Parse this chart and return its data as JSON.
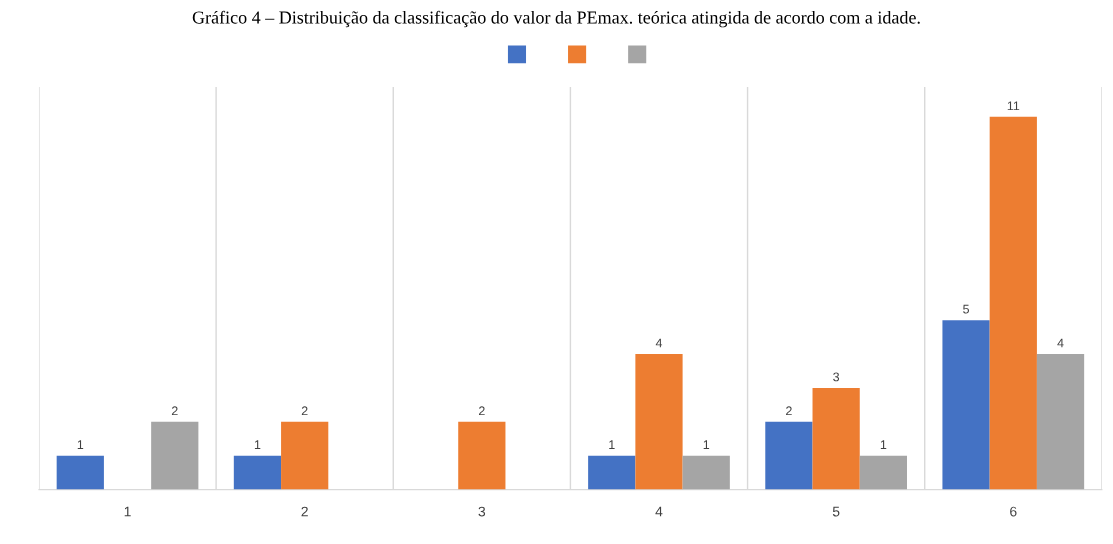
{
  "chart_data": {
    "type": "bar",
    "title": "Gráfico 4 – Distribuição da classificação do valor da PEmax. teórica atingida de acordo com a idade.",
    "categories": [
      "1",
      "2",
      "3",
      "4",
      "5",
      "6"
    ],
    "series": [
      {
        "color": "#4472c4",
        "values": [
          1,
          1,
          null,
          1,
          2,
          5
        ]
      },
      {
        "color": "#ed7d31",
        "values": [
          null,
          2,
          2,
          4,
          3,
          11
        ]
      },
      {
        "color": "#a5a5a5",
        "values": [
          2,
          null,
          null,
          1,
          1,
          4
        ]
      }
    ],
    "data_labels": true,
    "grid": "x",
    "tick_labels": "x"
  }
}
